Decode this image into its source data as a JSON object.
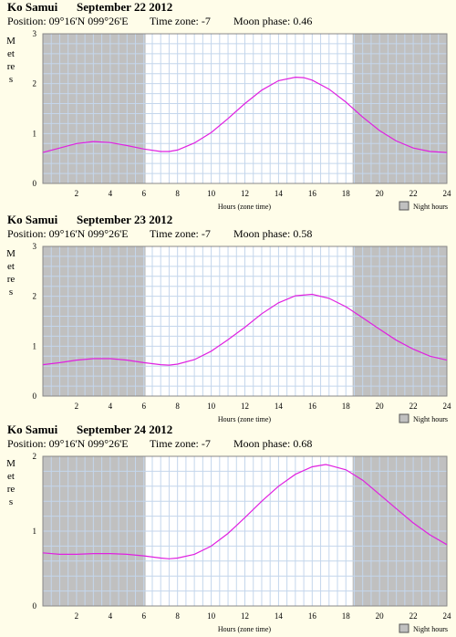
{
  "x_axis_label": "Hours (zone time)",
  "y_axis_label": "Metres",
  "night_legend": "Night hours",
  "colors": {
    "background": "#fffde9",
    "night": "#c0c0c0",
    "grid": "#c4d6ec",
    "curve": "#e020e0",
    "day": "#ffffff"
  },
  "panels": [
    {
      "location": "Ko Samui",
      "date": "September 22 2012",
      "position": "Position: 09°16'N 099°26'E",
      "timezone": "Time zone: -7",
      "moon_phase": "Moon phase: 0.46"
    },
    {
      "location": "Ko Samui",
      "date": "September 23 2012",
      "position": "Position: 09°16'N 099°26'E",
      "timezone": "Time zone: -7",
      "moon_phase": "Moon phase: 0.58"
    },
    {
      "location": "Ko Samui",
      "date": "September 24 2012",
      "position": "Position: 09°16'N 099°26'E",
      "timezone": "Time zone: -7",
      "moon_phase": "Moon phase: 0.68"
    }
  ],
  "chart_data": [
    {
      "type": "line",
      "xlabel": "Hours (zone time)",
      "ylabel": "Metres",
      "xlim": [
        0,
        24
      ],
      "ylim": [
        0,
        3
      ],
      "xticks": [
        2,
        4,
        6,
        8,
        10,
        12,
        14,
        16,
        18,
        20,
        22,
        24
      ],
      "yticks": [
        0,
        1,
        2,
        3
      ],
      "night_hours": [
        [
          0,
          6.1
        ],
        [
          18.4,
          24
        ]
      ],
      "x": [
        0,
        1,
        2,
        3,
        4,
        5,
        6,
        7,
        7.5,
        8,
        9,
        10,
        11,
        12,
        13,
        14,
        15,
        15.5,
        16,
        17,
        18,
        19,
        20,
        21,
        22,
        23,
        24
      ],
      "series": [
        {
          "values": [
            0.62,
            0.71,
            0.8,
            0.84,
            0.82,
            0.76,
            0.69,
            0.64,
            0.64,
            0.67,
            0.81,
            1.02,
            1.3,
            1.6,
            1.87,
            2.06,
            2.13,
            2.12,
            2.07,
            1.89,
            1.63,
            1.33,
            1.06,
            0.85,
            0.71,
            0.64,
            0.62
          ]
        }
      ]
    },
    {
      "type": "line",
      "xlabel": "Hours (zone time)",
      "ylabel": "Metres",
      "xlim": [
        0,
        24
      ],
      "ylim": [
        0,
        3
      ],
      "xticks": [
        2,
        4,
        6,
        8,
        10,
        12,
        14,
        16,
        18,
        20,
        22,
        24
      ],
      "yticks": [
        0,
        1,
        2,
        3
      ],
      "night_hours": [
        [
          0,
          6.1
        ],
        [
          18.4,
          24
        ]
      ],
      "x": [
        0,
        1,
        2,
        3,
        4,
        5,
        6,
        7,
        7.5,
        8,
        9,
        10,
        11,
        12,
        13,
        14,
        15,
        16,
        17,
        18,
        19,
        20,
        21,
        22,
        23,
        24
      ],
      "series": [
        {
          "values": [
            0.63,
            0.67,
            0.72,
            0.75,
            0.75,
            0.72,
            0.67,
            0.63,
            0.62,
            0.64,
            0.73,
            0.9,
            1.13,
            1.38,
            1.65,
            1.87,
            2.01,
            2.04,
            1.96,
            1.79,
            1.57,
            1.34,
            1.12,
            0.94,
            0.8,
            0.72
          ]
        }
      ]
    },
    {
      "type": "line",
      "xlabel": "Hours (zone time)",
      "ylabel": "Metres",
      "xlim": [
        0,
        24
      ],
      "ylim": [
        0,
        2
      ],
      "xticks": [
        2,
        4,
        6,
        8,
        10,
        12,
        14,
        16,
        18,
        20,
        22,
        24
      ],
      "yticks": [
        0,
        1,
        2
      ],
      "night_hours": [
        [
          0,
          6.1
        ],
        [
          18.4,
          24
        ]
      ],
      "x": [
        0,
        1,
        2,
        3,
        4,
        5,
        6,
        7,
        7.5,
        8,
        9,
        10,
        11,
        12,
        13,
        14,
        15,
        16,
        16.8,
        17,
        18,
        19,
        20,
        21,
        22,
        23,
        24
      ],
      "series": [
        {
          "values": [
            0.71,
            0.69,
            0.69,
            0.7,
            0.7,
            0.69,
            0.67,
            0.64,
            0.63,
            0.64,
            0.69,
            0.8,
            0.97,
            1.18,
            1.4,
            1.6,
            1.76,
            1.86,
            1.89,
            1.88,
            1.82,
            1.68,
            1.49,
            1.3,
            1.11,
            0.95,
            0.82
          ]
        }
      ]
    }
  ]
}
